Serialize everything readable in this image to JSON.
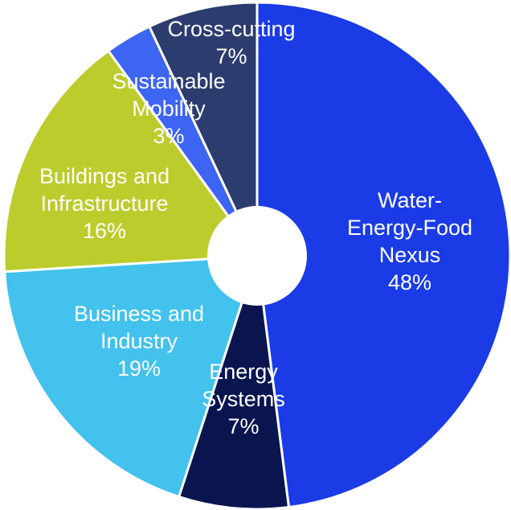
{
  "chart_data": {
    "type": "pie",
    "variant": "donut",
    "title": "",
    "legend": "none",
    "slices": [
      {
        "label_lines": [
          "Water-",
          "Energy-Food",
          "Nexus"
        ],
        "percent_label": "48%",
        "value": 48,
        "color": "#1a3be6"
      },
      {
        "label_lines": [
          "Energy",
          "Systems"
        ],
        "percent_label": "7%",
        "value": 7,
        "color": "#0a1550"
      },
      {
        "label_lines": [
          "Business and",
          "Industry"
        ],
        "percent_label": "19%",
        "value": 19,
        "color": "#42c2ec"
      },
      {
        "label_lines": [
          "Buildings and",
          "Infrastructure"
        ],
        "percent_label": "16%",
        "value": 16,
        "color": "#bccc2c"
      },
      {
        "label_lines": [
          "Sustainable",
          "Mobility"
        ],
        "percent_label": "3%",
        "value": 3,
        "color": "#3d64f2"
      },
      {
        "label_lines": [
          "Cross-cutting"
        ],
        "percent_label": "7%",
        "value": 7,
        "color": "#2c3c6f"
      }
    ]
  }
}
